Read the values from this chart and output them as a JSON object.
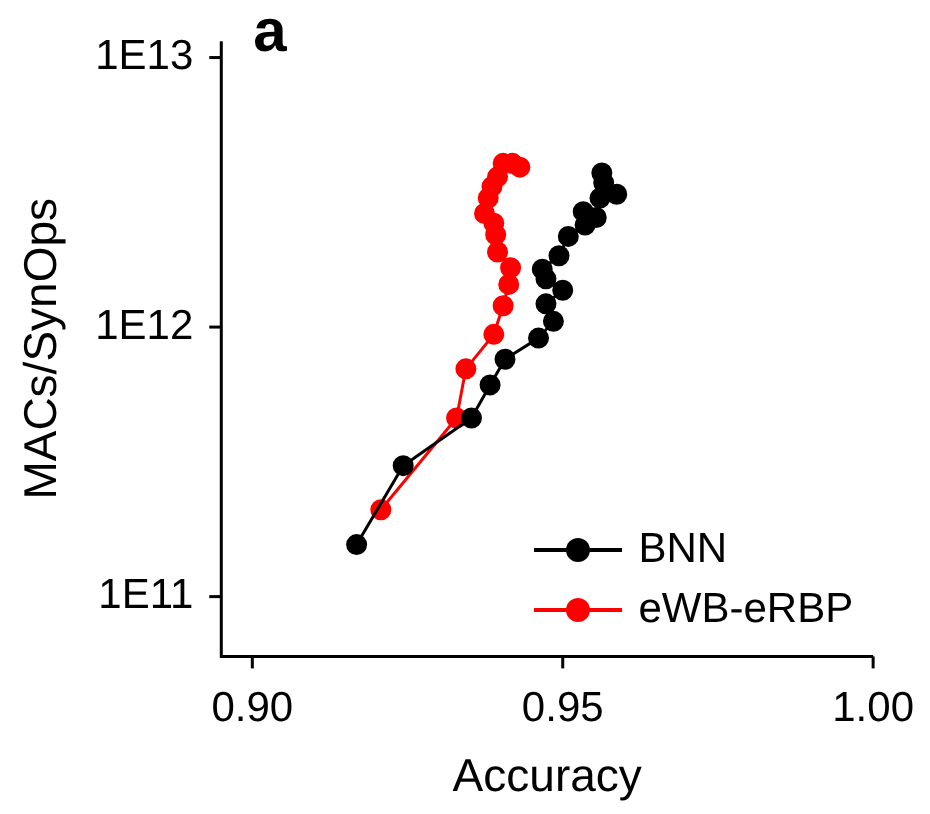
{
  "chart_data": {
    "type": "line",
    "title": "a",
    "xlabel": "Accuracy",
    "ylabel": "MACs/SynOps",
    "log": "y",
    "marker": "circle",
    "line_style": "solid",
    "grid": false,
    "legend": "bottom right",
    "xlim": [
      0.895,
      1.0
    ],
    "xticks": [
      {
        "value": 0.9,
        "label": "0.90"
      },
      {
        "value": 0.95,
        "label": "0.95"
      },
      {
        "value": 1.0,
        "label": "1.00"
      }
    ],
    "ylim": [
      60000000000,
      11500000000000
    ],
    "yticks": [
      {
        "value": 100000000000,
        "label": "1E11"
      },
      {
        "value": 1000000000000,
        "label": "1E12"
      },
      {
        "value": 10000000000000,
        "label": "1E13"
      }
    ],
    "series": [
      {
        "name": "BNN",
        "color": "#000000",
        "x": [
          0.9168,
          0.9243,
          0.9353,
          0.9383,
          0.9407,
          0.9461,
          0.9485,
          0.9473,
          0.95,
          0.9473,
          0.9467,
          0.9494,
          0.9509,
          0.9536,
          0.9533,
          0.9554,
          0.956,
          0.9587,
          0.9566,
          0.9563
        ],
        "values": [
          156000000000.0,
          306000000000.0,
          460000000000.0,
          610000000000.0,
          760000000000.0,
          910000000000.0,
          1050000000000.0,
          1220000000000.0,
          1370000000000.0,
          1510000000000.0,
          1640000000000.0,
          1840000000000.0,
          2170000000000.0,
          2390000000000.0,
          2680000000000.0,
          2550000000000.0,
          3010000000000.0,
          3110000000000.0,
          3430000000000.0,
          3730000000000.0
        ]
      },
      {
        "name": "eWB-eRBP",
        "color": "#ff0000",
        "x": [
          0.9207,
          0.9329,
          0.9344,
          0.9389,
          0.9404,
          0.9413,
          0.9416,
          0.9395,
          0.9392,
          0.9389,
          0.9374,
          0.938,
          0.9386,
          0.9395,
          0.9404,
          0.9419,
          0.9431
        ],
        "values": [
          210000000000.0,
          460000000000.0,
          700000000000.0,
          940000000000.0,
          1200000000000.0,
          1440000000000.0,
          1660000000000.0,
          1900000000000.0,
          2200000000000.0,
          2430000000000.0,
          2640000000000.0,
          3010000000000.0,
          3320000000000.0,
          3610000000000.0,
          4050000000000.0,
          4050000000000.0,
          3920000000000.0
        ]
      }
    ]
  }
}
